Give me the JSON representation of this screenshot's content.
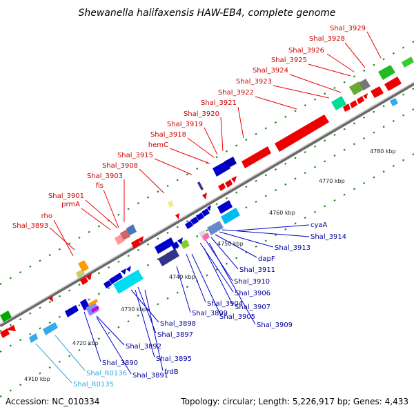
{
  "title": "Shewanella halifaxensis HAW-EB4, complete genome",
  "footer": {
    "accession": "Accession: NC_010334",
    "topology": "Topology: circular; Length: 5,226,917 bp; Genes: 4,433"
  },
  "kbp_labels": [
    "4710 kbp",
    "4720 kbp",
    "4730 kbp",
    "4740 kbp",
    "4750 kbp",
    "4760 kbp",
    "4770 kbp",
    "4780 kbp"
  ],
  "upper_labels": [
    "rho",
    "Shal_3893",
    "prmA",
    "Shal_3901",
    "fis",
    "Shal_3903",
    "Shal_3908",
    "Shal_3915",
    "hemC",
    "Shal_3918",
    "Shal_3919",
    "Shal_3920",
    "Shal_3921",
    "Shal_3922",
    "Shal_3923",
    "Shal_3924",
    "Shal_3925",
    "Shal_3926",
    "Shal_3928",
    "Shal_3929"
  ],
  "lower_labels": [
    "cyaA",
    "Shal_3914",
    "Shal_3913",
    "dapF",
    "Shal_3911",
    "Shal_3910",
    "Shal_3906",
    "Shal_3907",
    "Shal_3904",
    "Shal_3905",
    "Shal_3909",
    "Shal_3899",
    "Shal_3898",
    "Shal_3897",
    "Shal_3892",
    "Shal_3895",
    "Shal_3890",
    "frdB",
    "Shal_3891",
    "Shal_R0136",
    "Shal_R0135"
  ],
  "colors": {
    "red": "#cc0000",
    "blue": "#000099",
    "cyan": "#2aa8d8"
  }
}
